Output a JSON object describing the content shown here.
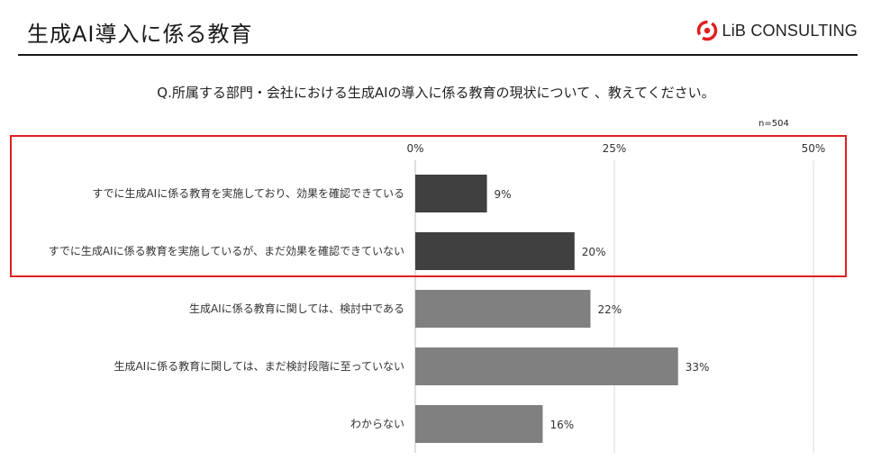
{
  "header": {
    "title": "生成AI導入に係る教育",
    "logo_text": "LiB CONSULTING"
  },
  "question": "Q.所属する部門・会社における生成AIの導入に係る教育の現状について 、教えてください。",
  "sample_note": "n=504",
  "colors": {
    "highlight_bar": "#404040",
    "normal_bar": "#808080",
    "highlight_border": "#e02020",
    "logo_red": "#e02020",
    "grid": "#d9d9d9"
  },
  "chart_data": {
    "type": "bar",
    "orientation": "horizontal",
    "categories": [
      "すでに生成AIに係る教育を実施しており、効果を確認できている",
      "すでに生成AIに係る教育を実施しているが、まだ効果を確認できていない",
      "生成AIに係る教育に関しては、検討中である",
      "生成AIに係る教育に関しては、まだ検討段階に至っていない",
      "わからない"
    ],
    "values": [
      9,
      20,
      22,
      33,
      16
    ],
    "value_labels": [
      "9%",
      "20%",
      "22%",
      "33%",
      "16%"
    ],
    "highlighted": [
      true,
      true,
      false,
      false,
      false
    ],
    "xlim": [
      0,
      50
    ],
    "xticks": [
      0,
      25,
      50
    ],
    "xtick_labels": [
      "0%",
      "25%",
      "50%"
    ],
    "grid": true,
    "legend": "none"
  }
}
